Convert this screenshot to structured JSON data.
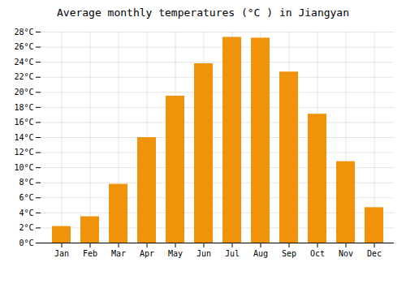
{
  "chart_data": {
    "type": "bar",
    "title": "Average monthly temperatures (°C ) in Jiangyan",
    "categories": [
      "Jan",
      "Feb",
      "Mar",
      "Apr",
      "May",
      "Jun",
      "Jul",
      "Aug",
      "Sep",
      "Oct",
      "Nov",
      "Dec"
    ],
    "values": [
      2.2,
      3.5,
      7.8,
      14.0,
      19.5,
      23.8,
      27.3,
      27.2,
      22.7,
      17.1,
      10.8,
      4.7
    ],
    "color": "#F0930A",
    "ylim": [
      0,
      28
    ],
    "yticks": [
      {
        "value": 0,
        "label": "0°C"
      },
      {
        "value": 2,
        "label": "2°C"
      },
      {
        "value": 4,
        "label": "4°C"
      },
      {
        "value": 6,
        "label": "6°C"
      },
      {
        "value": 8,
        "label": "8°C"
      },
      {
        "value": 10,
        "label": "10°C"
      },
      {
        "value": 12,
        "label": "12°C"
      },
      {
        "value": 14,
        "label": "14°C"
      },
      {
        "value": 16,
        "label": "16°C"
      },
      {
        "value": 18,
        "label": "18°C"
      },
      {
        "value": 20,
        "label": "20°C"
      },
      {
        "value": 22,
        "label": "22°C"
      },
      {
        "value": 24,
        "label": "24°C"
      },
      {
        "value": 26,
        "label": "26°C"
      },
      {
        "value": 28,
        "label": "28°C"
      }
    ],
    "grid": true
  }
}
